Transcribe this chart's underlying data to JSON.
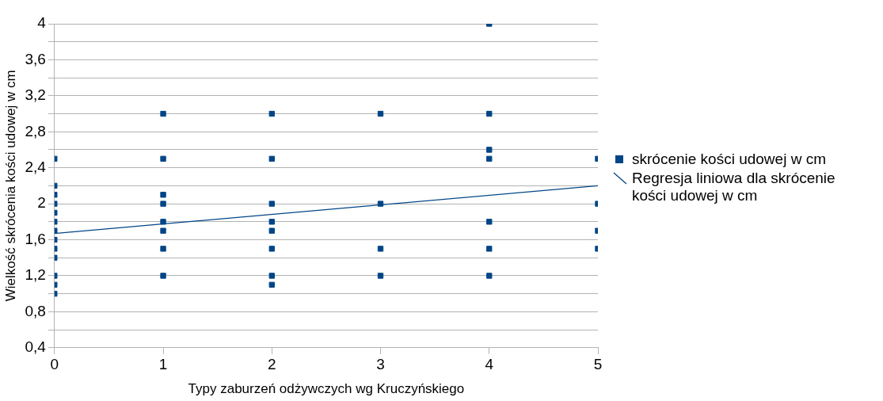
{
  "chart_data": {
    "type": "scatter",
    "xlabel": "Typy zaburzeń odżywczych wg Kruczyńskiego",
    "ylabel": "Wielkość skrócenia kości udowej w cm",
    "xlim": [
      0,
      5
    ],
    "xticks": [
      0,
      1,
      2,
      3,
      4,
      5
    ],
    "ylim": [
      0.4,
      4
    ],
    "yticks": [
      {
        "value": 0.4,
        "label": "0,4"
      },
      {
        "value": 0.6,
        "label": null
      },
      {
        "value": 0.8,
        "label": "0,8"
      },
      {
        "value": 1,
        "label": null
      },
      {
        "value": 1.2,
        "label": "1,2"
      },
      {
        "value": 1.4,
        "label": null
      },
      {
        "value": 1.6,
        "label": "1,6"
      },
      {
        "value": 1.8,
        "label": null
      },
      {
        "value": 2,
        "label": "2"
      },
      {
        "value": 2.2,
        "label": null
      },
      {
        "value": 2.4,
        "label": "2,4"
      },
      {
        "value": 2.6,
        "label": null
      },
      {
        "value": 2.8,
        "label": "2,8"
      },
      {
        "value": 3,
        "label": null
      },
      {
        "value": 3.2,
        "label": "3,2"
      },
      {
        "value": 3.4,
        "label": null
      },
      {
        "value": 3.6,
        "label": "3,6"
      },
      {
        "value": 3.8,
        "label": null
      },
      {
        "value": 4,
        "label": "4"
      }
    ],
    "grid": "y",
    "legend": "right",
    "series": [
      {
        "name": "skrócenie kości udowej w cm",
        "color": "#004586",
        "marker": "square",
        "x": [
          0,
          0,
          0,
          0,
          0,
          0,
          0,
          0,
          0,
          0,
          0,
          0,
          0,
          1,
          1,
          1,
          1,
          1,
          1,
          1,
          1,
          2,
          2,
          2,
          2,
          2,
          2,
          2,
          2,
          3,
          3,
          3,
          3,
          4,
          4,
          4,
          4,
          4,
          4,
          4,
          5,
          5,
          5,
          5
        ],
        "values": [
          2.5,
          2.2,
          2.1,
          2.0,
          1.9,
          1.8,
          1.7,
          1.6,
          1.5,
          1.4,
          1.2,
          1.1,
          1.0,
          3.0,
          2.5,
          2.1,
          2.0,
          1.8,
          1.7,
          1.5,
          1.2,
          3.0,
          2.5,
          2.0,
          1.8,
          1.7,
          1.5,
          1.2,
          1.1,
          3.0,
          2.0,
          1.5,
          1.2,
          4.0,
          3.0,
          2.6,
          2.5,
          1.8,
          1.5,
          1.2,
          2.5,
          2.0,
          1.7,
          1.5
        ]
      },
      {
        "type": "line",
        "name": "Regresja liniowa dla skrócenie kości udowej w cm",
        "color": "#004586",
        "marker": "none",
        "x": [
          0,
          5
        ],
        "values": [
          1.67,
          2.2
        ]
      }
    ]
  }
}
